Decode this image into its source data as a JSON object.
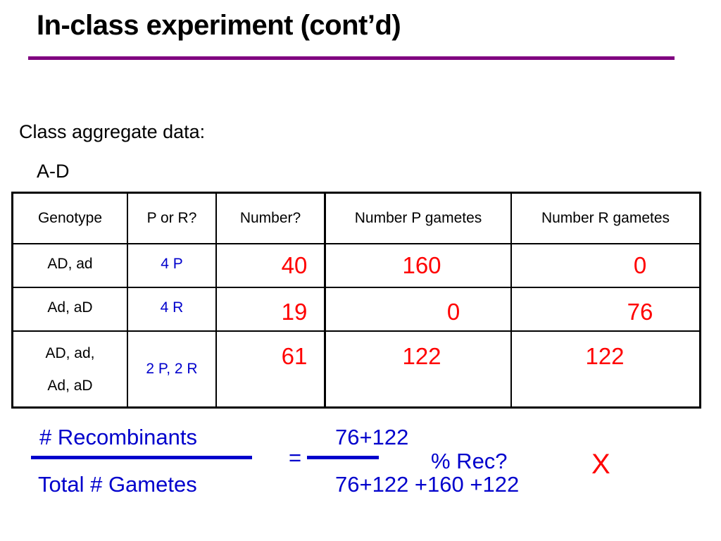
{
  "slide": {
    "title": "In-class experiment (cont’d)",
    "subheading": "Class aggregate data:",
    "gene_pair": "A-D"
  },
  "table": {
    "headers": [
      "Genotype",
      "P or R?",
      "Number?",
      "Number P gametes",
      "Number R gametes"
    ],
    "rows": [
      {
        "genotype_line1": "AD, ad",
        "genotype_line2": "",
        "p_or_r": "4 P",
        "number": "40",
        "p_gametes": "160",
        "r_gametes": "0"
      },
      {
        "genotype_line1": "Ad, aD",
        "genotype_line2": "",
        "p_or_r": "4 R",
        "number": "19",
        "p_gametes": "0",
        "r_gametes": "76"
      },
      {
        "genotype_line1": "AD, ad,",
        "genotype_line2": "Ad, aD",
        "p_or_r": "2 P, 2 R",
        "number": "61",
        "p_gametes": "122",
        "r_gametes": "122"
      }
    ]
  },
  "formula": {
    "numerator_label": "# Recombinants",
    "denominator_label": "Total # Gametes",
    "equals": "=",
    "numerator_value": "76+122",
    "denominator_value": "76+122 +160 +122",
    "result_label": "% Rec?",
    "mark": "X"
  },
  "colors": {
    "title_rule": "#800080",
    "formula_text": "#0000cc",
    "numbers": "#ff0000"
  }
}
